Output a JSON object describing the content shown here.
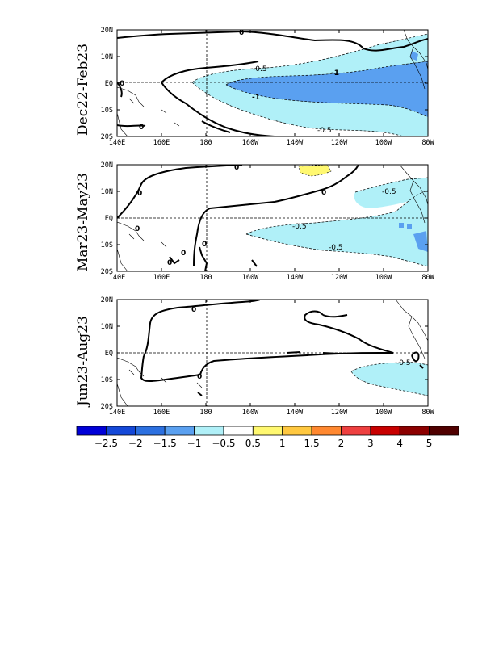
{
  "chart_data": {
    "type": "heatmap",
    "x_tick_labels": [
      "140E",
      "160E",
      "180",
      "160W",
      "140W",
      "120W",
      "100W",
      "80W"
    ],
    "y_tick_labels": [
      "20N",
      "10N",
      "EQ",
      "10S",
      "20S"
    ],
    "panels": [
      {
        "title": "Dec22-Feb23",
        "contour_labels": [
          "0",
          "0",
          "0",
          "0",
          "-0.5",
          "-0.5",
          "-1",
          "-1"
        ],
        "regions": [
          {
            "level": "-0.5 to -1",
            "description": "light blue tongue from ~180 to 80W, 12S to 8N"
          },
          {
            "level": "-1 to -1.5",
            "description": "medium blue core from ~170W to 80W near equator"
          }
        ]
      },
      {
        "title": "Mar23-May23",
        "contour_labels": [
          "0",
          "0",
          "0",
          "0",
          "0",
          "0",
          "0",
          "-0.5",
          "-0.5",
          "-0.5"
        ],
        "regions": [
          {
            "level": "0.5 to 1",
            "description": "small yellow patch near 130W, 20N"
          },
          {
            "level": "-0.5 to -1",
            "description": "light blue region from ~160W to 80W south of equator"
          }
        ]
      },
      {
        "title": "Jun23-Aug23",
        "contour_labels": [
          "0",
          "0",
          "-0.5"
        ],
        "regions": [
          {
            "level": "-0.5 to -1",
            "description": "light blue patch from ~115W to 80W south of equator"
          }
        ]
      }
    ],
    "colorbar": {
      "labels": [
        "-2.5",
        "-2",
        "-1.5",
        "-1",
        "-0.5",
        "0.5",
        "1",
        "1.5",
        "2",
        "3",
        "4",
        "5"
      ],
      "colors": [
        "#0000d8",
        "#1448d8",
        "#2c70e0",
        "#5aa0f0",
        "#b0f0f8",
        "#ffffff",
        "#fff870",
        "#ffc840",
        "#ff8830",
        "#ee4040",
        "#c80000",
        "#8c0000",
        "#500000"
      ]
    }
  }
}
